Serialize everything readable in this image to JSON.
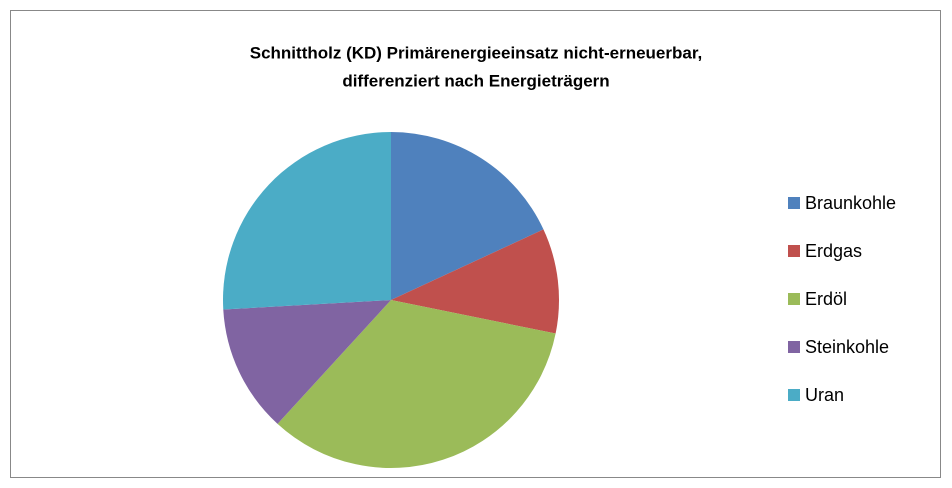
{
  "chart_data": {
    "type": "pie",
    "title": [
      "Schnittholz (KD) Primärenergieeinsatz nicht-erneuerbar,",
      "differenziert nach Energieträgern"
    ],
    "categories": [
      "Braunkohle",
      "Erdgas",
      "Erdöl",
      "Steinkohle",
      "Uran"
    ],
    "values": [
      18.1,
      10.1,
      33.6,
      12.3,
      25.9
    ],
    "colors": [
      "#4f81bd",
      "#c0504d",
      "#9bbb59",
      "#8064a2",
      "#4bacc6"
    ],
    "legend": "right"
  }
}
